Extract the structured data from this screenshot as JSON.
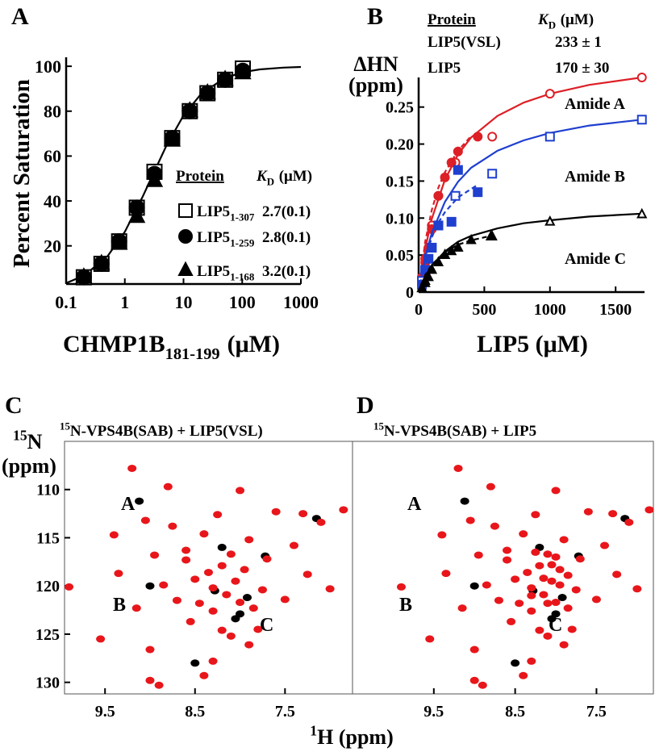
{
  "chart_data": [
    {
      "type": "scatter",
      "panel": "A",
      "log_x": true,
      "xlim": [
        0.1,
        1000
      ],
      "xticks": [
        0.1,
        1,
        10,
        100,
        1000
      ],
      "ylim": [
        3,
        104
      ],
      "yticks": [
        20,
        40,
        60,
        80,
        100
      ],
      "y_label": "Percent Saturation",
      "x_label": {
        "main": "CHMP1B",
        "sub": "181-199",
        "rest": "(μM)"
      },
      "legend_header": [
        "Protein",
        {
          "main": "K",
          "italic": true,
          "sub": "D",
          "rest": "(μM)"
        }
      ],
      "series": [
        {
          "name": "LIP5",
          "name_sub": "1-307",
          "kd": "2.7(0.1)",
          "marker": "square",
          "filled": false,
          "color": "#000000",
          "x": [
            0.2,
            0.4,
            0.8,
            1.6,
            3.2,
            6.4,
            12.8,
            25.6,
            51.2,
            102.4
          ],
          "values": [
            6,
            12,
            22,
            37,
            53,
            68,
            80,
            88,
            94,
            99
          ]
        },
        {
          "name": "LIP5",
          "name_sub": "1-259",
          "kd": "2.8(0.1)",
          "marker": "circle",
          "filled": true,
          "color": "#000000",
          "x": [
            0.2,
            0.4,
            0.8,
            1.6,
            3.2,
            6.4,
            12.8,
            25.6,
            51.2,
            102.4
          ],
          "values": [
            6,
            12,
            22,
            37,
            52,
            68,
            80,
            88,
            94,
            98
          ]
        },
        {
          "name": "LIP5",
          "name_sub": "1-168",
          "kd": "3.2(0.1)",
          "marker": "triangle",
          "filled": true,
          "color": "#000000",
          "x": [
            0.2,
            0.4,
            0.8,
            1.6,
            3.2,
            6.4,
            12.8,
            25.6,
            51.2,
            102.4
          ],
          "values": [
            6,
            12,
            21,
            33,
            49,
            67,
            80,
            88,
            94,
            97
          ]
        }
      ],
      "fit_color": "#000000",
      "fit_x": [
        0.1,
        0.2,
        0.5,
        1,
        2,
        3,
        5,
        10,
        20,
        50,
        100,
        200,
        500,
        1000
      ],
      "fit_values": [
        3.4,
        6.7,
        15.2,
        26.3,
        41.7,
        51.7,
        64.1,
        78.1,
        87.7,
        94.7,
        97.3,
        98.6,
        99.4,
        99.7
      ]
    },
    {
      "type": "scatter",
      "panel": "B",
      "xlim": [
        0,
        1720
      ],
      "xticks": [
        0,
        500,
        1000,
        1500
      ],
      "ylim": [
        0,
        0.29
      ],
      "yticks": [
        0,
        0.05,
        {
          "value": 0.1,
          "label": "0.10"
        },
        0.15,
        {
          "value": 0.2,
          "label": "0.20"
        },
        0.25
      ],
      "y_label": [
        "ΔHN",
        "(ppm)"
      ],
      "x_label": "LIP5 (μM)",
      "legend_header": [
        "Protein",
        {
          "main": "K",
          "italic": true,
          "sub": "D",
          "rest": "(μM)"
        }
      ],
      "legend_rows": [
        [
          "LIP5(VSL)",
          "233 ± 1"
        ],
        [
          "LIP5",
          "170 ± 30"
        ]
      ],
      "annotations": [
        "Amide A",
        "Amide B",
        "Amide C"
      ],
      "series": [
        {
          "color": "#dd1f26",
          "marker": "circle",
          "filled": false,
          "line": "solid",
          "x": [
            25,
            50,
            100,
            150,
            280,
            560,
            1000,
            1700
          ],
          "values": [
            0.02,
            0.045,
            0.09,
            0.13,
            0.175,
            0.21,
            0.268,
            0.29
          ],
          "fit_x": [
            0,
            50,
            100,
            200,
            300,
            400,
            600,
            800,
            1000,
            1300,
            1700
          ],
          "fit_values": [
            0,
            0.058,
            0.099,
            0.152,
            0.186,
            0.209,
            0.238,
            0.256,
            0.268,
            0.28,
            0.29
          ]
        },
        {
          "color": "#dd1f26",
          "marker": "circle",
          "filled": true,
          "line": "dashed",
          "x": [
            25,
            50,
            75,
            100,
            150,
            200,
            250,
            300,
            450
          ],
          "values": [
            0.02,
            0.04,
            0.06,
            0.085,
            0.13,
            0.155,
            0.175,
            0.19,
            0.21
          ],
          "fit_x": [
            0,
            50,
            100,
            150,
            200,
            300,
            400
          ],
          "fit_values": [
            0,
            0.068,
            0.111,
            0.141,
            0.162,
            0.191,
            0.211
          ]
        },
        {
          "color": "#1f3fcf",
          "marker": "square",
          "filled": false,
          "line": "solid",
          "x": [
            25,
            50,
            100,
            150,
            280,
            560,
            1000,
            1700
          ],
          "values": [
            0.015,
            0.03,
            0.06,
            0.09,
            0.13,
            0.16,
            0.21,
            0.233
          ],
          "fit_x": [
            0,
            50,
            100,
            200,
            300,
            400,
            600,
            800,
            1000,
            1300,
            1700
          ],
          "fit_values": [
            0,
            0.047,
            0.08,
            0.122,
            0.149,
            0.168,
            0.191,
            0.205,
            0.215,
            0.225,
            0.233
          ]
        },
        {
          "color": "#1f3fcf",
          "marker": "square",
          "filled": true,
          "line": "dashed",
          "x": [
            25,
            50,
            75,
            100,
            150,
            250,
            300,
            450
          ],
          "values": [
            0.01,
            0.03,
            0.045,
            0.06,
            0.09,
            0.095,
            0.165,
            0.135
          ],
          "fit_x": [
            0,
            50,
            100,
            150,
            200,
            300,
            450
          ],
          "fit_values": [
            0,
            0.045,
            0.074,
            0.094,
            0.108,
            0.128,
            0.145
          ]
        },
        {
          "color": "#000000",
          "marker": "triangle",
          "filled": false,
          "line": "solid",
          "x": [
            25,
            50,
            100,
            200,
            300,
            560,
            1000,
            1700
          ],
          "values": [
            0.005,
            0.015,
            0.03,
            0.05,
            0.06,
            0.075,
            0.095,
            0.105
          ],
          "fit_x": [
            0,
            50,
            100,
            200,
            300,
            400,
            600,
            800,
            1000,
            1300,
            1700
          ],
          "fit_values": [
            0,
            0.021,
            0.036,
            0.055,
            0.068,
            0.076,
            0.086,
            0.093,
            0.097,
            0.102,
            0.106
          ]
        },
        {
          "color": "#000000",
          "marker": "triangle",
          "filled": true,
          "line": "dashed",
          "x": [
            25,
            50,
            75,
            100,
            150,
            200,
            250,
            300,
            400,
            550
          ],
          "values": [
            0.005,
            0.012,
            0.02,
            0.03,
            0.04,
            0.05,
            0.055,
            0.06,
            0.07,
            0.075
          ],
          "fit_x": [
            0,
            50,
            100,
            200,
            300,
            400,
            550
          ],
          "fit_values": [
            0,
            0.023,
            0.037,
            0.054,
            0.064,
            0.07,
            0.076
          ]
        }
      ]
    },
    {
      "type": "spectrum",
      "panel": "C",
      "frame": "box",
      "y_inverted": true,
      "title": {
        "sup": "15",
        "main": "N-VPS4B(SAB) + LIP5(VSL)"
      },
      "y_label": [
        {
          "sup": "15",
          "main": "N"
        },
        "(ppm)"
      ],
      "x_label": {
        "sup": "1",
        "main": "H (ppm)"
      },
      "xlim": [
        9.95,
        6.75
      ],
      "xticks": [
        9.5,
        8.5,
        7.5
      ],
      "ylim": [
        105,
        131.2
      ],
      "yticks": [
        110,
        115,
        120,
        125,
        130
      ],
      "annotations": [
        "A",
        "B",
        "C"
      ],
      "series": [
        {
          "color": "#000000",
          "x": [
            9.12,
            9.0,
            8.28,
            8.05,
            7.92,
            7.15,
            8.5,
            7.72,
            8.0,
            8.2
          ],
          "values": [
            111.2,
            120.0,
            120.5,
            123.4,
            121.2,
            113.0,
            128.0,
            116.9,
            122.9,
            116.0
          ]
        },
        {
          "color": "#e8161b",
          "x": [
            9.9,
            9.55,
            9.35,
            9.2,
            9.15,
            9.05,
            9.0,
            8.95,
            8.85,
            8.8,
            8.75,
            8.7,
            8.6,
            8.55,
            8.5,
            8.45,
            8.4,
            8.35,
            8.3,
            8.25,
            8.2,
            8.15,
            8.1,
            8.05,
            8.0,
            7.95,
            7.9,
            7.85,
            7.8,
            7.75,
            7.7,
            7.6,
            7.5,
            7.4,
            7.3,
            7.25,
            7.1,
            7.0,
            6.85,
            8.3,
            8.2,
            8.1,
            8.0,
            8.4,
            8.6,
            9.4,
            9.0,
            8.9,
            8.3,
            7.9
          ],
          "values": [
            120.1,
            125.5,
            118.7,
            107.8,
            122.3,
            113.2,
            126.6,
            116.8,
            119.9,
            109.7,
            113.8,
            121.5,
            116.3,
            123.7,
            119.3,
            121.8,
            114.6,
            118.6,
            120.2,
            112.6,
            117.9,
            120.9,
            116.7,
            119.5,
            121.7,
            118.3,
            115.2,
            122.3,
            124.5,
            120.4,
            117.2,
            112.3,
            121.4,
            115.8,
            112.5,
            118.8,
            113.4,
            120.3,
            112.1,
            127.8,
            124.6,
            125.2,
            110.1,
            129.3,
            117.3,
            114.7,
            129.8,
            130.3,
            122.6,
            126.1
          ]
        }
      ]
    },
    {
      "type": "spectrum",
      "panel": "D",
      "frame": "box",
      "y_inverted": true,
      "title": {
        "sup": "15",
        "main": "N-VPS4B(SAB) + LIP5"
      },
      "xlim": [
        10.5,
        6.8
      ],
      "xticks": [
        9.5,
        8.5,
        7.5
      ],
      "ylim": [
        105,
        131.2
      ],
      "annotations": [
        "A",
        "B",
        "C"
      ],
      "series": [
        {
          "color": "#000000",
          "x": [
            9.12,
            9.0,
            8.28,
            8.05,
            7.92,
            7.15,
            8.5,
            7.72,
            8.0,
            8.2
          ],
          "values": [
            111.2,
            120.0,
            120.5,
            123.4,
            121.2,
            113.0,
            128.0,
            116.9,
            122.9,
            116.0
          ]
        },
        {
          "color": "#e8161b",
          "x": [
            9.9,
            9.55,
            9.35,
            9.2,
            9.15,
            9.05,
            9.0,
            8.95,
            8.85,
            8.8,
            8.75,
            8.7,
            8.6,
            8.55,
            8.5,
            8.45,
            8.4,
            8.35,
            8.3,
            8.25,
            8.2,
            8.15,
            8.1,
            8.05,
            8.0,
            7.95,
            7.9,
            7.85,
            7.8,
            7.75,
            7.7,
            7.6,
            7.5,
            7.4,
            7.3,
            7.25,
            7.1,
            7.0,
            6.85,
            8.3,
            8.2,
            8.1,
            8.0,
            8.4,
            8.6,
            9.4,
            9.0,
            8.9,
            8.3,
            7.9,
            8.25,
            8.15,
            8.05,
            7.95,
            8.3,
            8.1,
            8.0,
            7.85
          ],
          "values": [
            120.1,
            125.5,
            118.7,
            107.8,
            122.3,
            113.2,
            126.6,
            116.8,
            119.9,
            109.7,
            113.8,
            121.5,
            116.3,
            123.7,
            119.3,
            121.8,
            114.6,
            118.6,
            120.2,
            112.6,
            117.9,
            120.9,
            116.7,
            119.5,
            121.7,
            118.3,
            115.2,
            122.3,
            124.5,
            120.4,
            117.2,
            112.3,
            121.4,
            115.8,
            112.5,
            118.8,
            113.4,
            120.3,
            112.1,
            127.8,
            124.6,
            125.2,
            110.1,
            129.3,
            117.3,
            114.7,
            129.8,
            130.3,
            122.6,
            126.1,
            116.5,
            119.2,
            117.8,
            119.9,
            121.0,
            121.8,
            117.0,
            118.9
          ]
        }
      ]
    }
  ]
}
